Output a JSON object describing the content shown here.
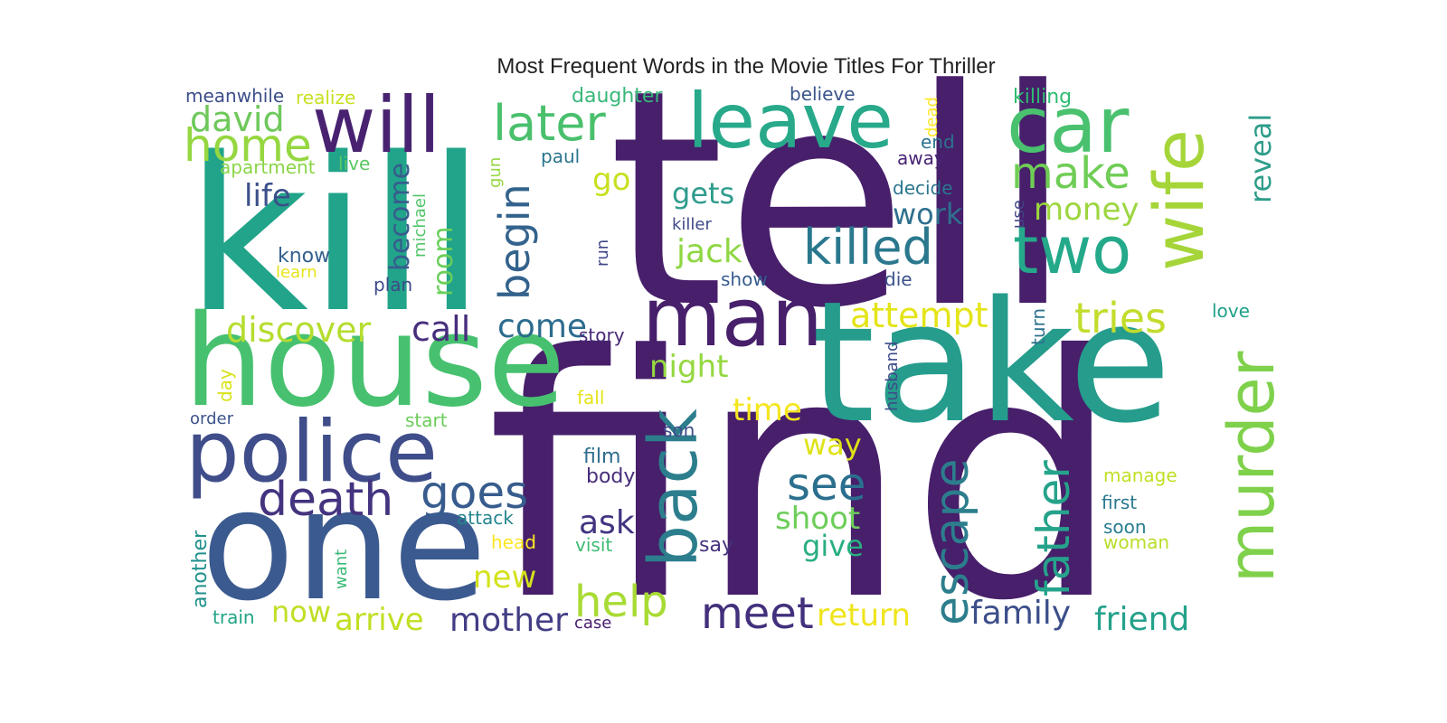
{
  "chart_data": {
    "type": "wordcloud",
    "title": "Most Frequent Words in the Movie Titles For Thriller",
    "words": [
      {
        "text": "find",
        "color": "#471f6b",
        "weight": 100
      },
      {
        "text": "tell",
        "color": "#471f6b",
        "weight": 96
      },
      {
        "text": "kill",
        "color": "#21a48a",
        "weight": 88
      },
      {
        "text": "take",
        "color": "#259c8c",
        "weight": 78
      },
      {
        "text": "one",
        "color": "#3b5a8f",
        "weight": 74
      },
      {
        "text": "house",
        "color": "#47c16f",
        "weight": 68
      },
      {
        "text": "police",
        "color": "#3f4d8a",
        "weight": 52
      },
      {
        "text": "man",
        "color": "#471f6b",
        "weight": 46
      },
      {
        "text": "leave",
        "color": "#27a98a",
        "weight": 45
      },
      {
        "text": "will",
        "color": "#482271",
        "weight": 44
      },
      {
        "text": "car",
        "color": "#49c16f",
        "weight": 42
      },
      {
        "text": "wife",
        "color": "#a5d539",
        "weight": 40
      },
      {
        "text": "two",
        "color": "#24a98a",
        "weight": 40
      },
      {
        "text": "murder",
        "color": "#7fd14b",
        "weight": 38
      },
      {
        "text": "back",
        "color": "#2c7e8d",
        "weight": 36
      },
      {
        "text": "killed",
        "color": "#2a788e",
        "weight": 33
      },
      {
        "text": "later",
        "color": "#4ac06d",
        "weight": 30
      },
      {
        "text": "death",
        "color": "#44337f",
        "weight": 28
      },
      {
        "text": "escape",
        "color": "#2c7e8d",
        "weight": 28
      },
      {
        "text": "father",
        "color": "#26a38b",
        "weight": 27
      },
      {
        "text": "goes",
        "color": "#375c8d",
        "weight": 26
      },
      {
        "text": "home",
        "color": "#95d740",
        "weight": 26
      },
      {
        "text": "help",
        "color": "#a8db34",
        "weight": 25
      },
      {
        "text": "make",
        "color": "#6fcd55",
        "weight": 25
      },
      {
        "text": "begin",
        "color": "#33638d",
        "weight": 25
      },
      {
        "text": "see",
        "color": "#2b6f8e",
        "weight": 25
      },
      {
        "text": "meet",
        "color": "#43307c",
        "weight": 24
      },
      {
        "text": "tries",
        "color": "#c3dc2d",
        "weight": 23
      },
      {
        "text": "david",
        "color": "#6ec85a",
        "weight": 22
      },
      {
        "text": "discover",
        "color": "#b5dd2e",
        "weight": 21
      },
      {
        "text": "attempt",
        "color": "#e4e419",
        "weight": 21
      },
      {
        "text": "call",
        "color": "#472e7c",
        "weight": 21
      },
      {
        "text": "come",
        "color": "#2c6c8e",
        "weight": 20
      },
      {
        "text": "jack",
        "color": "#8fd743",
        "weight": 20
      },
      {
        "text": "night",
        "color": "#94d840",
        "weight": 20
      },
      {
        "text": "reveal",
        "color": "#2e9d8a",
        "weight": 20
      },
      {
        "text": "family",
        "color": "#3c4e8a",
        "weight": 20
      },
      {
        "text": "friend",
        "color": "#25a18b",
        "weight": 20
      },
      {
        "text": "mother",
        "color": "#423d84",
        "weight": 20
      },
      {
        "text": "arrive",
        "color": "#c1df23",
        "weight": 19
      },
      {
        "text": "new",
        "color": "#d4e21b",
        "weight": 19
      },
      {
        "text": "shoot",
        "color": "#6cce59",
        "weight": 19
      },
      {
        "text": "return",
        "color": "#efe51c",
        "weight": 19
      },
      {
        "text": "become",
        "color": "#365c8d",
        "weight": 18
      },
      {
        "text": "life",
        "color": "#3b4f8a",
        "weight": 18
      },
      {
        "text": "money",
        "color": "#9cd63f",
        "weight": 18
      },
      {
        "text": "work",
        "color": "#2f708e",
        "weight": 18
      },
      {
        "text": "gets",
        "color": "#2f9c8d",
        "weight": 18
      },
      {
        "text": "room",
        "color": "#6ace5a",
        "weight": 18
      },
      {
        "text": "ask",
        "color": "#433381",
        "weight": 18
      },
      {
        "text": "go",
        "color": "#c8e020",
        "weight": 18
      },
      {
        "text": "now",
        "color": "#bfdf25",
        "weight": 18
      },
      {
        "text": "time",
        "color": "#f5e61f",
        "weight": 18
      },
      {
        "text": "give",
        "color": "#28ae80",
        "weight": 17
      },
      {
        "text": "way",
        "color": "#dfe318",
        "weight": 17
      },
      {
        "text": "daughter",
        "color": "#38b77a",
        "weight": 15
      },
      {
        "text": "meanwhile",
        "color": "#3d4e8a",
        "weight": 14
      },
      {
        "text": "realize",
        "color": "#c8e020",
        "weight": 14
      },
      {
        "text": "apartment",
        "color": "#8ad547",
        "weight": 14
      },
      {
        "text": "live",
        "color": "#5ac864",
        "weight": 14
      },
      {
        "text": "killing",
        "color": "#2ebb70",
        "weight": 14
      },
      {
        "text": "believe",
        "color": "#3a538b",
        "weight": 14
      },
      {
        "text": "love",
        "color": "#1fa088",
        "weight": 14
      },
      {
        "text": "paul",
        "color": "#2b758e",
        "weight": 14
      },
      {
        "text": "story",
        "color": "#482878",
        "weight": 14
      },
      {
        "text": "know",
        "color": "#34608d",
        "weight": 14
      },
      {
        "text": "plan",
        "color": "#3e4a89",
        "weight": 14
      },
      {
        "text": "decide",
        "color": "#2a768e",
        "weight": 14
      },
      {
        "text": "away",
        "color": "#482475",
        "weight": 14
      },
      {
        "text": "end",
        "color": "#2b738e",
        "weight": 14
      },
      {
        "text": "killer",
        "color": "#3e4989",
        "weight": 14
      },
      {
        "text": "show",
        "color": "#365d8d",
        "weight": 14
      },
      {
        "text": "die",
        "color": "#3b528b",
        "weight": 14
      },
      {
        "text": "learn",
        "color": "#e8e419",
        "weight": 14
      },
      {
        "text": "michael",
        "color": "#52c569",
        "weight": 14
      },
      {
        "text": "gun",
        "color": "#95d840",
        "weight": 14
      },
      {
        "text": "run",
        "color": "#3f4788",
        "weight": 14
      },
      {
        "text": "use",
        "color": "#414487",
        "weight": 14
      },
      {
        "text": "dead",
        "color": "#fde725",
        "weight": 14
      },
      {
        "text": "turn",
        "color": "#2d718e",
        "weight": 14
      },
      {
        "text": "husband",
        "color": "#3e4a89",
        "weight": 14
      },
      {
        "text": "day",
        "color": "#d8e219",
        "weight": 14
      },
      {
        "text": "order",
        "color": "#3b528b",
        "weight": 14
      },
      {
        "text": "fall",
        "color": "#e5e419",
        "weight": 14
      },
      {
        "text": "start",
        "color": "#6ccd5a",
        "weight": 14
      },
      {
        "text": "son",
        "color": "#3e4c8a",
        "weight": 14
      },
      {
        "text": "film",
        "color": "#2f6b8e",
        "weight": 14
      },
      {
        "text": "body",
        "color": "#472d7b",
        "weight": 14
      },
      {
        "text": "attack",
        "color": "#25858e",
        "weight": 14
      },
      {
        "text": "head",
        "color": "#fde725",
        "weight": 14
      },
      {
        "text": "visit",
        "color": "#3fbc73",
        "weight": 14
      },
      {
        "text": "say",
        "color": "#46327e",
        "weight": 14
      },
      {
        "text": "want",
        "color": "#3aba76",
        "weight": 14
      },
      {
        "text": "another",
        "color": "#21918c",
        "weight": 14
      },
      {
        "text": "train",
        "color": "#20a486",
        "weight": 14
      },
      {
        "text": "case",
        "color": "#481d6f",
        "weight": 14
      },
      {
        "text": "manage",
        "color": "#c0df25",
        "weight": 14
      },
      {
        "text": "first",
        "color": "#2a788e",
        "weight": 14
      },
      {
        "text": "soon",
        "color": "#287d8e",
        "weight": 14
      },
      {
        "text": "woman",
        "color": "#b8de29",
        "weight": 14
      }
    ]
  }
}
